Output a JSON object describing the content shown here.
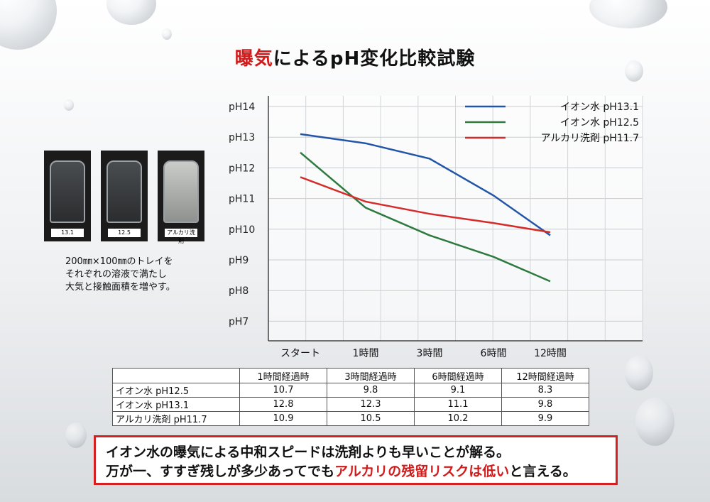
{
  "title": {
    "highlight": "曝気",
    "rest": "によるpH変化比較試験"
  },
  "trays": [
    {
      "label": "13.1",
      "tone": "dark"
    },
    {
      "label": "12.5",
      "tone": "dark"
    },
    {
      "label": "アルカリ洗剤",
      "tone": "light"
    }
  ],
  "description": [
    "200㎜×100㎜のトレイを",
    "それぞれの溶液で満たし",
    "大気と接触面積を増やす。"
  ],
  "chart_data": {
    "type": "line",
    "categories": [
      "スタート",
      "1時間",
      "3時間",
      "6時間",
      "12時間"
    ],
    "y_tick_labels": [
      "pH14",
      "pH13",
      "pH12",
      "pH11",
      "pH10",
      "pH9",
      "pH8",
      "pH7"
    ],
    "ylim": [
      7,
      14
    ],
    "grid": true,
    "legend_position": "top-right",
    "series": [
      {
        "name": "イオン水 pH13.1",
        "color": "#2255a8",
        "values": [
          13.1,
          12.8,
          12.3,
          11.1,
          9.8
        ]
      },
      {
        "name": "イオン水 pH12.5",
        "color": "#2e7a3e",
        "values": [
          12.5,
          10.7,
          9.8,
          9.1,
          8.3
        ]
      },
      {
        "name": "アルカリ洗剤 pH11.7",
        "color": "#d62b2b",
        "values": [
          11.7,
          10.9,
          10.5,
          10.2,
          9.9
        ]
      }
    ]
  },
  "table": {
    "headers": [
      "",
      "1時間経過時",
      "3時間経過時",
      "6時間経過時",
      "12時間経過時"
    ],
    "rows": [
      {
        "label": "イオン水 pH12.5",
        "values": [
          "10.7",
          "9.8",
          "9.1",
          "8.3"
        ]
      },
      {
        "label": "イオン水 pH13.1",
        "values": [
          "12.8",
          "12.3",
          "11.1",
          "9.8"
        ]
      },
      {
        "label": "アルカリ洗剤 pH11.7",
        "values": [
          "10.9",
          "10.5",
          "10.2",
          "9.9"
        ]
      }
    ]
  },
  "note": {
    "line1": "イオン水の曝気による中和スピードは洗剤よりも早いことが解る。",
    "line2_a": "万が一、すすぎ残しが多少あってでも",
    "line2_red": "アルカリの残留リスクは低い",
    "line2_b": "と言える。"
  }
}
